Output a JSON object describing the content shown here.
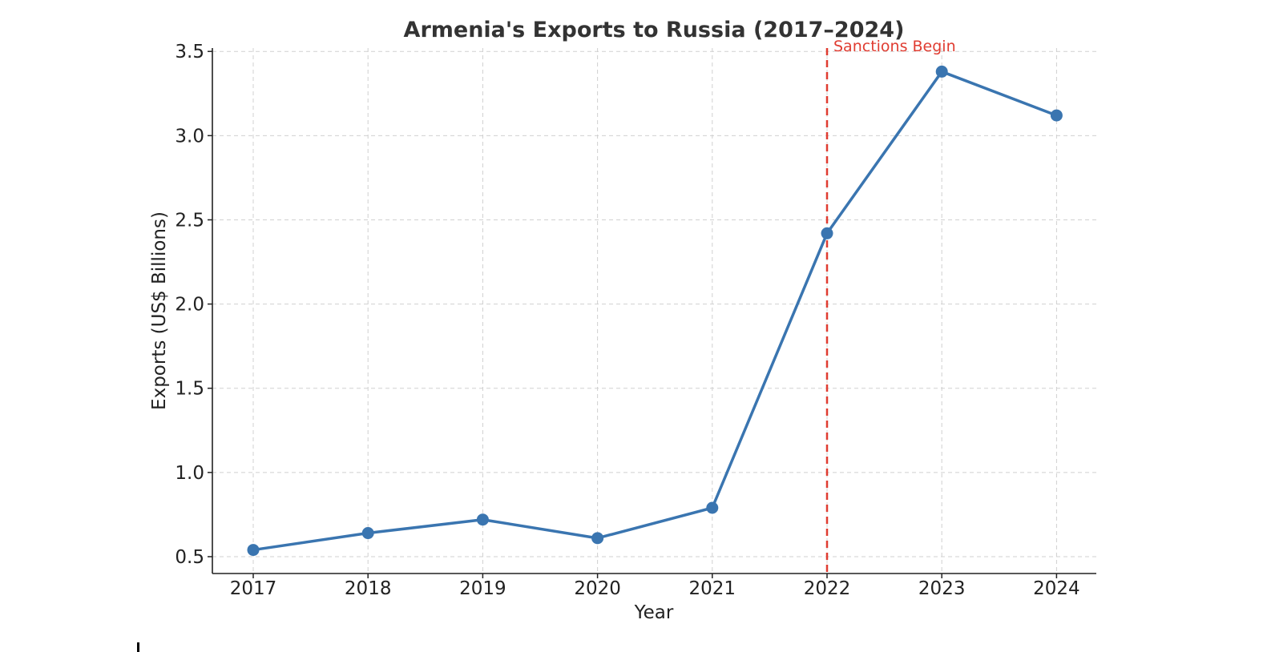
{
  "chart_data": {
    "type": "line",
    "title": "Armenia's Exports to Russia (2017–2024)",
    "xlabel": "Year",
    "ylabel": "Exports (US$ Billions)",
    "x": [
      "2017",
      "2018",
      "2019",
      "2020",
      "2021",
      "2022",
      "2023",
      "2024"
    ],
    "series": [
      {
        "values": [
          0.54,
          0.64,
          0.72,
          0.61,
          0.79,
          2.42,
          3.38,
          3.12
        ],
        "color": "#3a75b0",
        "marker": "circle"
      }
    ],
    "ylim": [
      0.4,
      3.52
    ],
    "yticks": [
      "0.5",
      "1.0",
      "1.5",
      "2.0",
      "2.5",
      "3.0",
      "3.5"
    ],
    "grid": true,
    "grid_style": "dashed",
    "annotations": [
      {
        "type": "vertical-line",
        "x": "2022",
        "label": "Sanctions Begin",
        "color": "#e03c31",
        "style": "dashed"
      }
    ]
  }
}
